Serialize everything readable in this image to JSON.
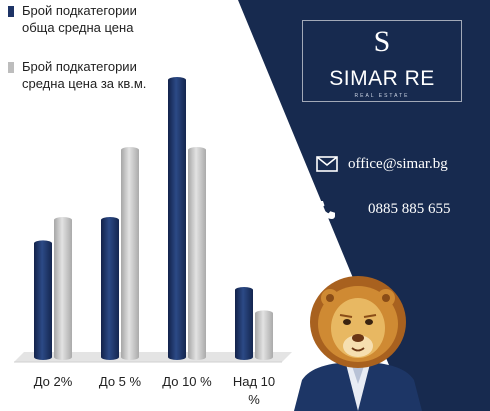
{
  "chart_data": {
    "type": "bar",
    "categories": [
      "До 2%",
      "До 5 %",
      "До 10 %",
      "Над 10 %"
    ],
    "series": [
      {
        "name": "Брой подкатегории обща средна цена",
        "values": [
          5,
          6,
          12,
          3
        ],
        "color": "#1e3466"
      },
      {
        "name": "Брой подкатегории средна цена за кв.м.",
        "values": [
          6,
          9,
          9,
          2
        ],
        "color": "#bdbdbd"
      }
    ],
    "ylim": [
      0,
      12
    ],
    "grid": false,
    "legend": "top-left"
  },
  "brand": {
    "logo_letter": "S",
    "name": "SIMAR RE",
    "tagline": "REAL ESTATE"
  },
  "contact": {
    "email": "office@simar.bg",
    "phone": "0885 885 655"
  },
  "colors": {
    "navy": "#172a4f",
    "bar_navy": "#1e3466",
    "bar_gray": "#bdbdbd"
  },
  "icons": {
    "email": "envelope-icon",
    "phone": "phone-icon",
    "mascot": "lion-mascot"
  }
}
